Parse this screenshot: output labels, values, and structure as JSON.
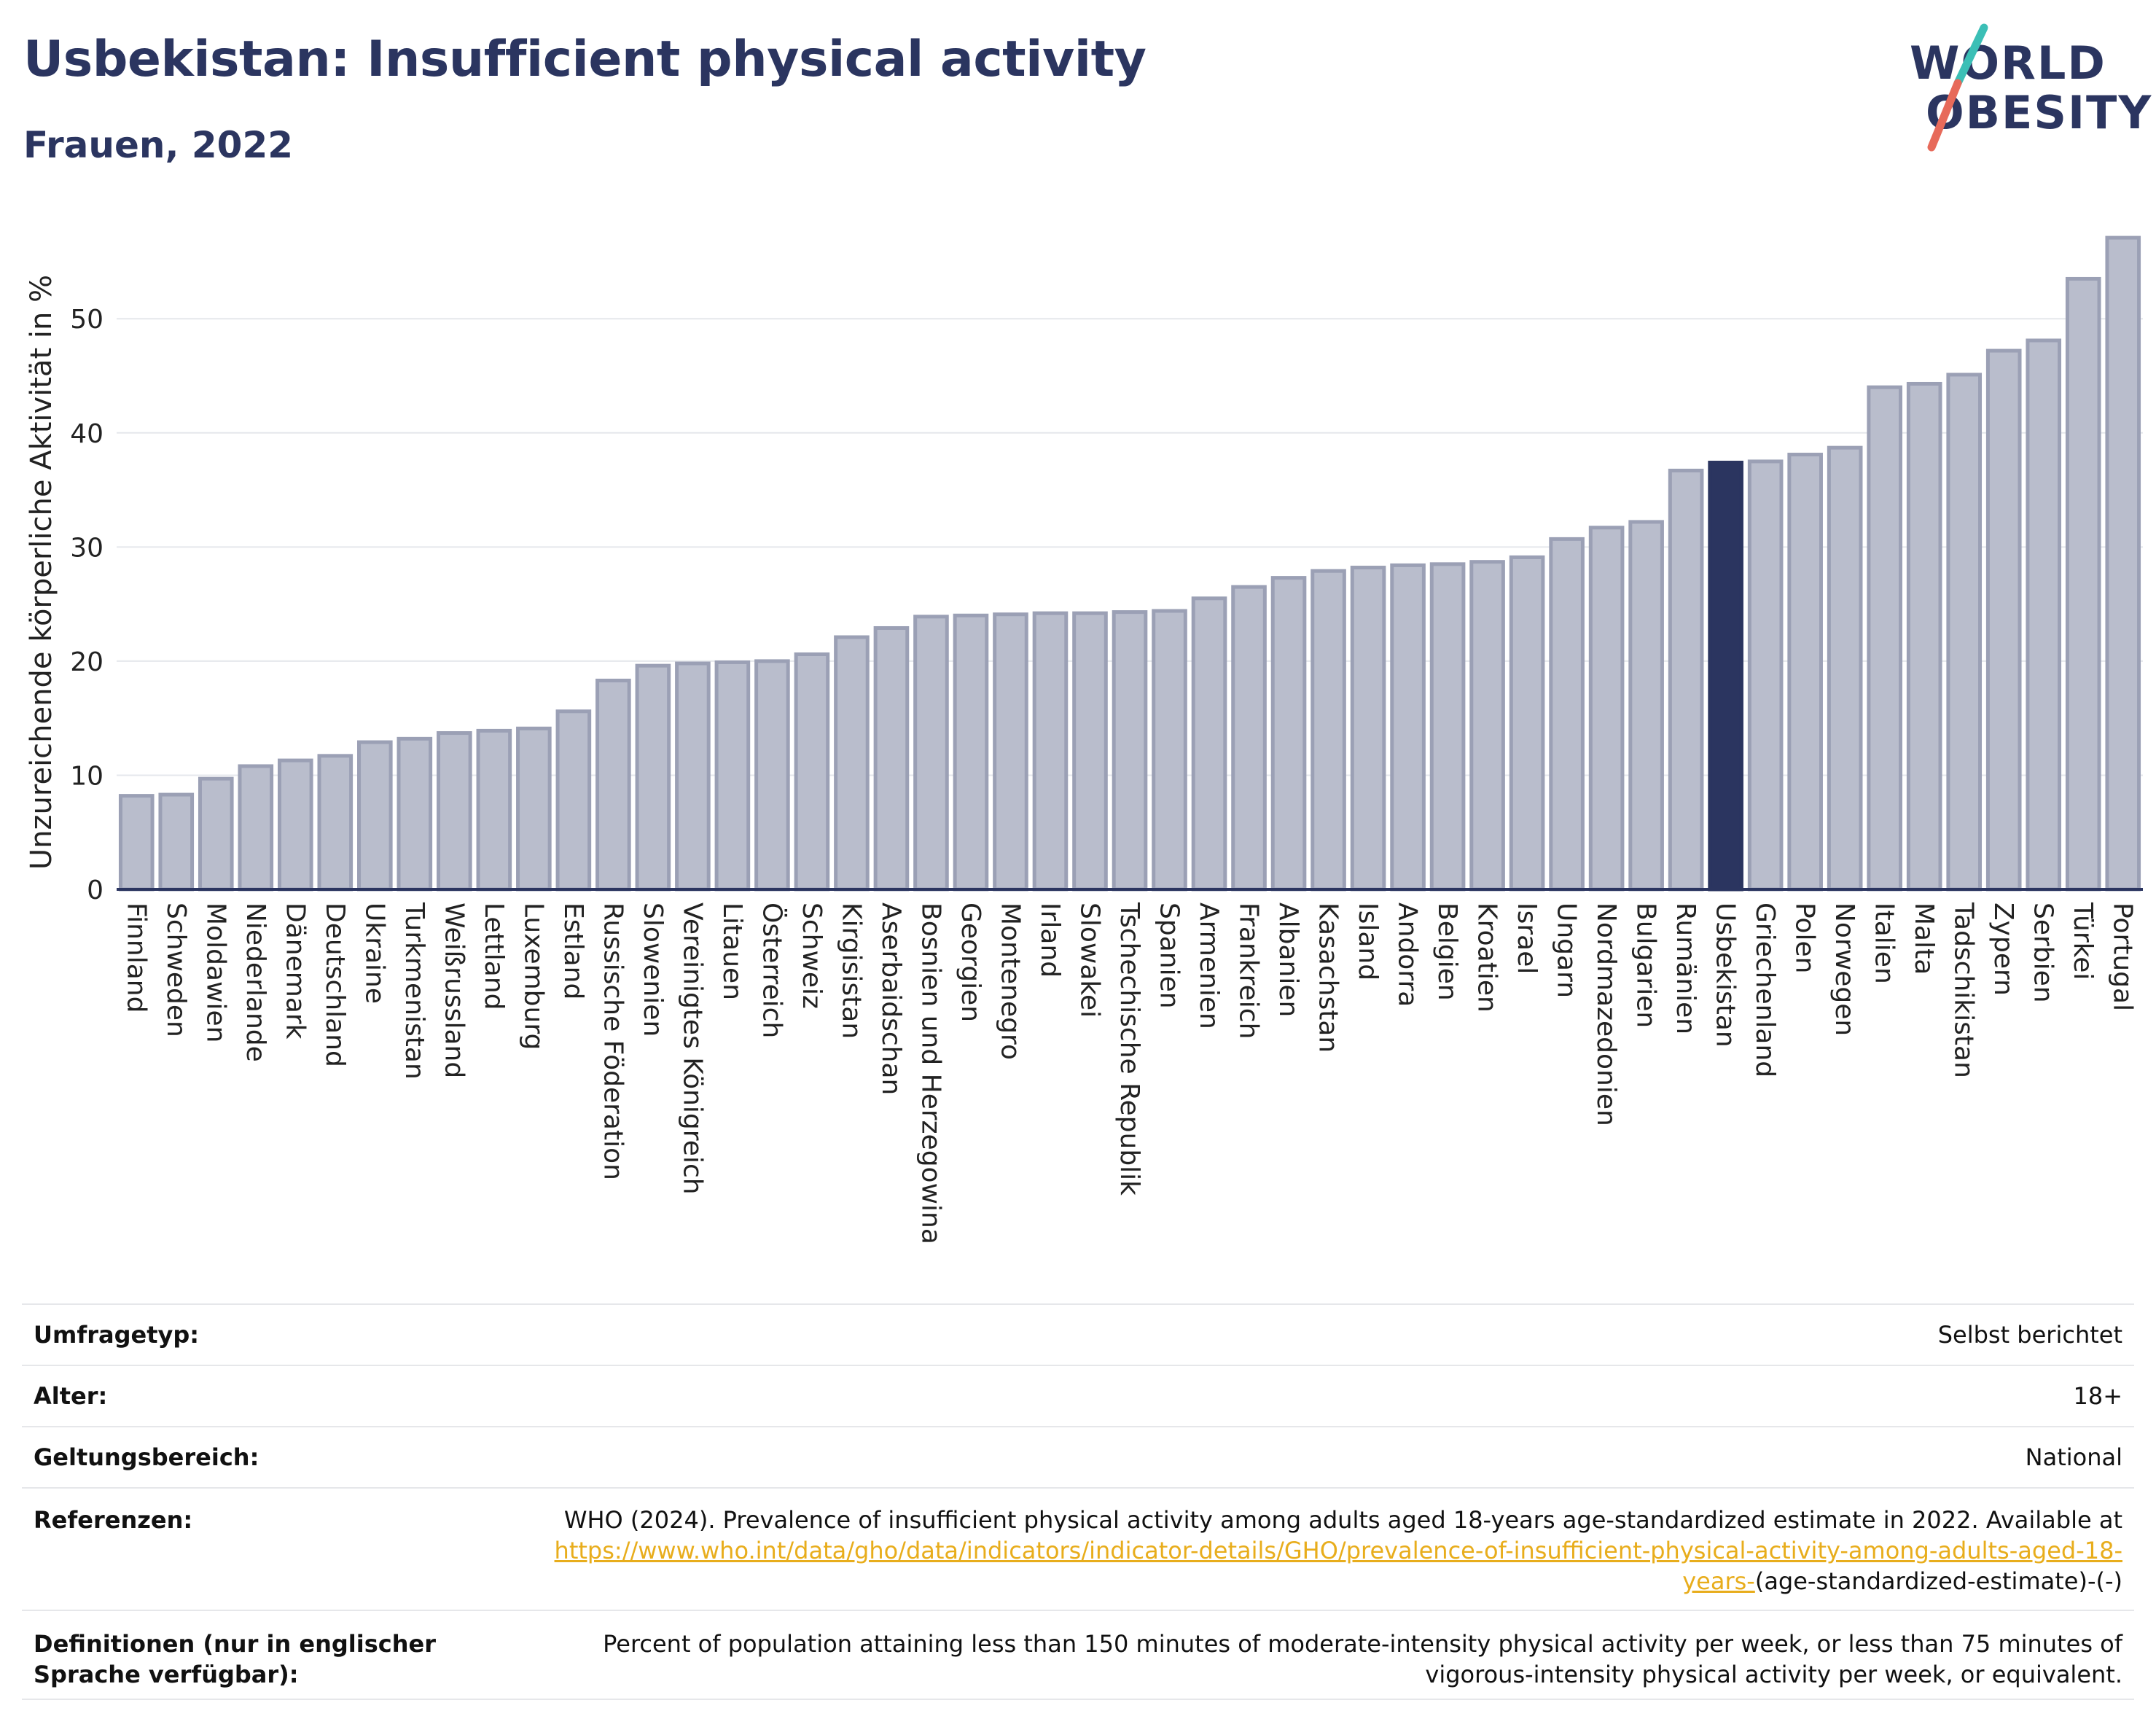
{
  "title": "Usbekistan: Insufficient physical activity",
  "subtitle": "Frauen, 2022",
  "logo": {
    "line1": "WORLD",
    "line2": "OBESITY",
    "colors": {
      "text": "#2b3560",
      "slash_top": "#3bbfb6",
      "slash_bottom": "#e76a5a"
    }
  },
  "colors": {
    "bar": "#b9bdcc",
    "bar_border": "#9ba0b5",
    "highlight": "#2b3560",
    "axis": "#2b3560",
    "grid": "#e5e7ec"
  },
  "chart_data": {
    "type": "bar",
    "ylabel": "Unzureichende körperliche Aktivität in %",
    "ylim": [
      0,
      58
    ],
    "yticks": [
      0,
      10,
      20,
      30,
      40,
      50
    ],
    "grid": true,
    "highlight": "Usbekistan",
    "categories": [
      "Finnland",
      "Schweden",
      "Moldawien",
      "Niederlande",
      "Dänemark",
      "Deutschland",
      "Ukraine",
      "Turkmenistan",
      "Weißrussland",
      "Lettland",
      "Luxemburg",
      "Estland",
      "Russische Föderation",
      "Slowenien",
      "Vereinigtes Königreich",
      "Litauen",
      "Österreich",
      "Schweiz",
      "Kirgisistan",
      "Aserbaidschan",
      "Bosnien und Herzegowina",
      "Georgien",
      "Montenegro",
      "Irland",
      "Slowakei",
      "Tschechische Republik",
      "Spanien",
      "Armenien",
      "Frankreich",
      "Albanien",
      "Kasachstan",
      "Island",
      "Andorra",
      "Belgien",
      "Kroatien",
      "Israel",
      "Ungarn",
      "Nordmazedonien",
      "Bulgarien",
      "Rumänien",
      "Usbekistan",
      "Griechenland",
      "Polen",
      "Norwegen",
      "Italien",
      "Malta",
      "Tadschikistan",
      "Zypern",
      "Serbien",
      "Türkei",
      "Portugal"
    ],
    "values": [
      8.2,
      8.3,
      9.7,
      10.8,
      11.3,
      11.7,
      12.9,
      13.2,
      13.7,
      13.9,
      14.1,
      15.6,
      18.3,
      19.6,
      19.8,
      19.9,
      20.0,
      20.6,
      22.1,
      22.9,
      23.9,
      24.0,
      24.1,
      24.2,
      24.2,
      24.3,
      24.4,
      25.5,
      26.5,
      27.3,
      27.9,
      28.2,
      28.4,
      28.5,
      28.7,
      29.1,
      30.7,
      31.7,
      32.2,
      36.7,
      37.4,
      37.5,
      38.1,
      38.7,
      44.0,
      44.3,
      45.1,
      47.2,
      48.1,
      53.5,
      57.1
    ]
  },
  "meta": {
    "survey_label": "Umfragetyp:",
    "survey_value": "Selbst berichtet",
    "age_label": "Alter:",
    "age_value": "18+",
    "scope_label": "Geltungsbereich:",
    "scope_value": "National",
    "refs_label": "Referenzen:",
    "refs_text": "WHO (2024). Prevalence of insufficient physical activity among adults aged 18-years age-standardized estimate in 2022. Available at",
    "refs_link": "https://www.who.int/data/gho/data/indicators/indicator-details/GHO/prevalence-of-insufficient-physical-activity-among-adults-aged-18-years-",
    "refs_suffix": "(age-standardized-estimate)-(-)",
    "def_label": "Definitionen (nur in englischer Sprache verfügbar):",
    "def_text": "Percent of population attaining less than 150 minutes of moderate-intensity physical activity per week, or less than 75 minutes of vigorous-intensity physical activity per week, or equivalent."
  }
}
